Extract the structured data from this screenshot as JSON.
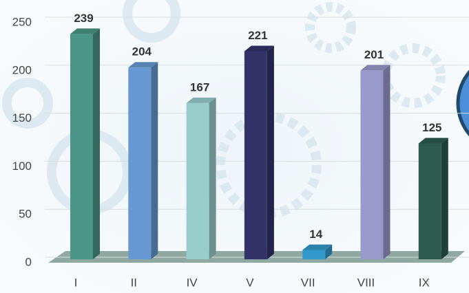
{
  "chart_data": {
    "type": "bar3d",
    "categories": [
      "I",
      "II",
      "IV",
      "V",
      "VII",
      "VIII",
      "IX"
    ],
    "values": [
      239,
      204,
      167,
      221,
      14,
      201,
      125
    ],
    "colors": [
      "#4a9585",
      "#6699d1",
      "#99cdcc",
      "#33336a",
      "#3399cc",
      "#9a99cc",
      "#2c5b4e"
    ],
    "ylim": [
      0,
      250
    ],
    "yticks": [
      0,
      50,
      100,
      150,
      200,
      250
    ],
    "grid": true
  }
}
